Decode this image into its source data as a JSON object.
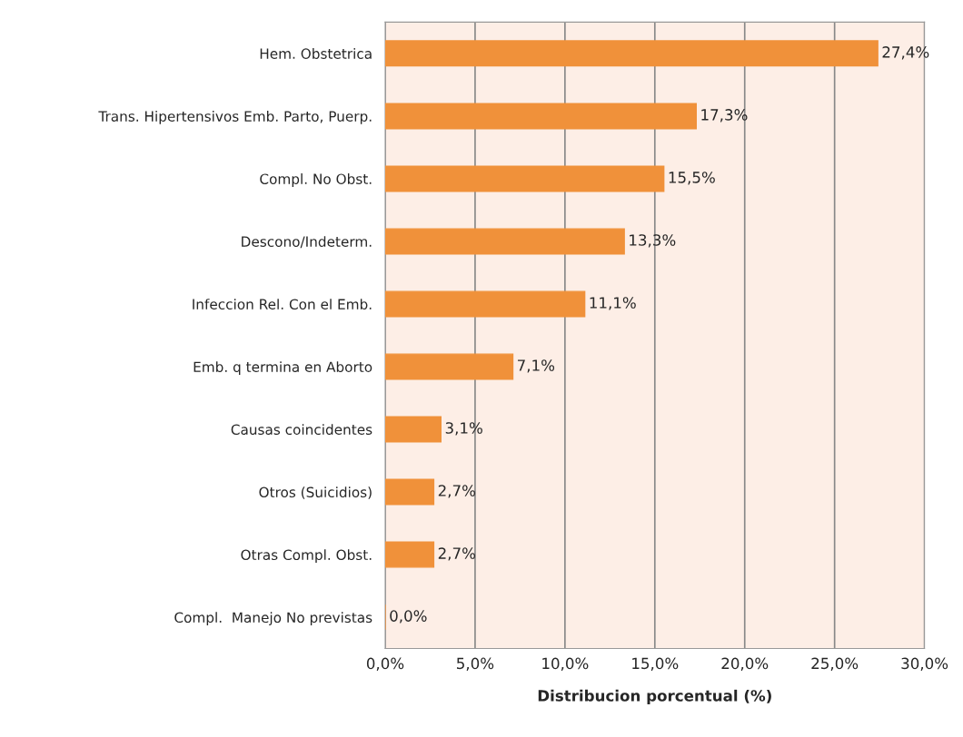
{
  "chart_data": {
    "type": "bar",
    "orientation": "horizontal",
    "categories": [
      "Hem. Obstetrica",
      "Trans. Hipertensivos Emb. Parto, Puerp.",
      "Compl. No Obst.",
      "Descono/Indeterm.",
      "Infeccion Rel. Con el Emb.",
      "Emb. q termina en Aborto",
      "Causas coincidentes",
      "Otros (Suicidios)",
      "Otras Compl. Obst.",
      "Compl.  Manejo No previstas"
    ],
    "values": [
      27.4,
      17.3,
      15.5,
      13.3,
      11.1,
      7.1,
      3.1,
      2.7,
      2.7,
      0.0
    ],
    "value_labels": [
      "27,4%",
      "17,3%",
      "15,5%",
      "13,3%",
      "11,1%",
      "7,1%",
      "3,1%",
      "2,7%",
      "2,7%",
      "0,0%"
    ],
    "color": "#f0913a",
    "xlabel": "Distribucion porcentual (%)",
    "xlim": [
      0,
      30
    ],
    "xticks": [
      {
        "value": 0,
        "label": "0,0%"
      },
      {
        "value": 5,
        "label": "5,0%"
      },
      {
        "value": 10,
        "label": "10,0%"
      },
      {
        "value": 15,
        "label": "15,0%"
      },
      {
        "value": 20,
        "label": "20,0%"
      },
      {
        "value": 25,
        "label": "25,0%"
      },
      {
        "value": 30,
        "label": "30,0%"
      }
    ],
    "grid": "x"
  }
}
